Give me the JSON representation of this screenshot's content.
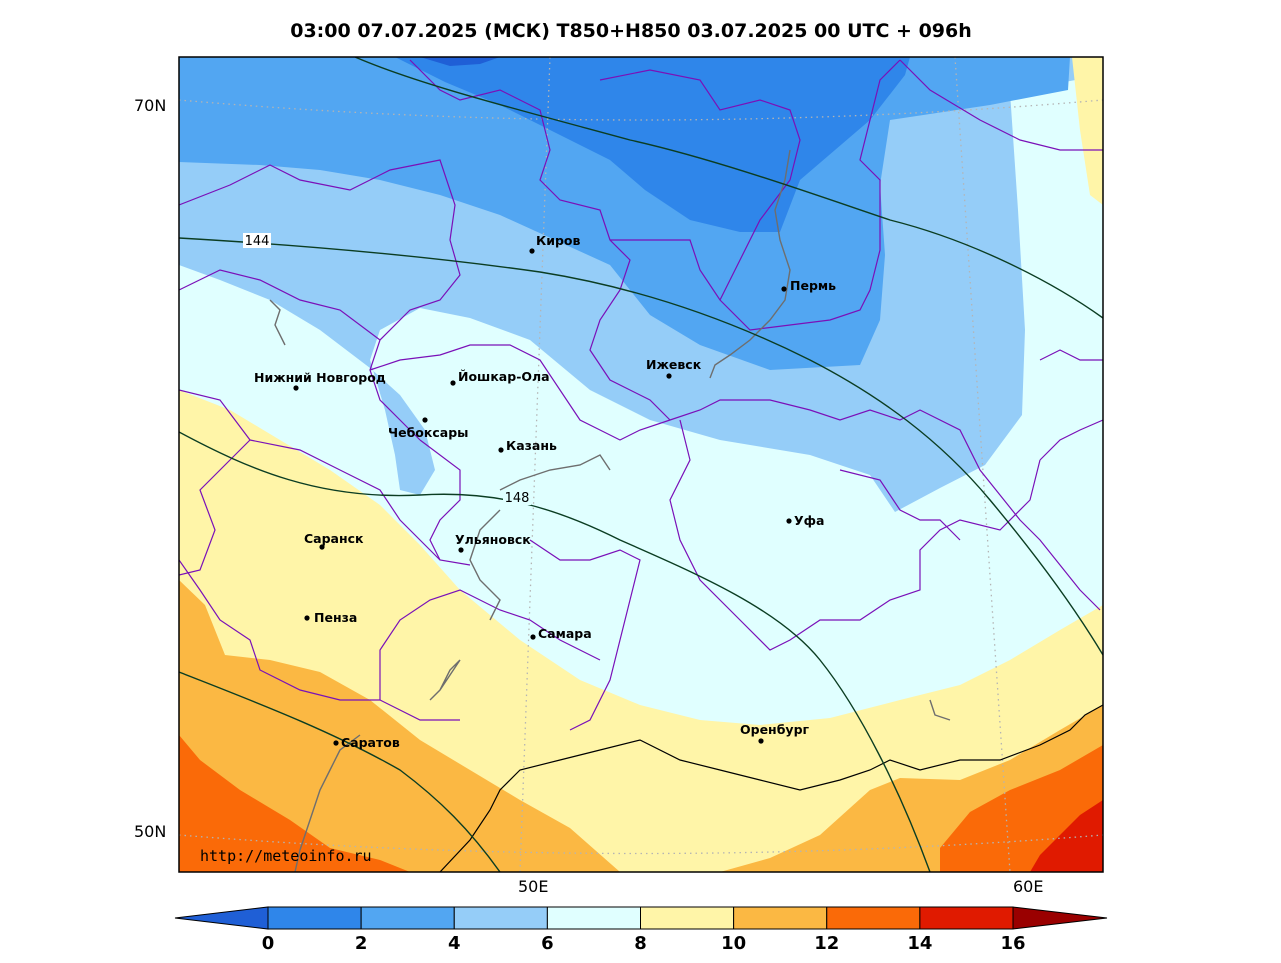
{
  "title": "03:00 07.07.2025 (МСК) T850+H850 03.07.2025 00 UTC + 096h",
  "watermark": "http://meteoinfo.ru",
  "lat_labels": [
    "70N",
    "50N"
  ],
  "lon_labels": [
    "50E",
    "60E"
  ],
  "contour_labels": [
    "144",
    "148"
  ],
  "colorbar": {
    "ticks": [
      "0",
      "2",
      "4",
      "6",
      "8",
      "10",
      "12",
      "14",
      "16"
    ],
    "colors": [
      "#1f5fd6",
      "#2f86ea",
      "#52a6f2",
      "#95cdf8",
      "#e0ffff",
      "#fff5a8",
      "#fbb843",
      "#fa6a08",
      "#e01a00",
      "#9a0000"
    ]
  },
  "cities": [
    {
      "name": "Киров"
    },
    {
      "name": "Пермь"
    },
    {
      "name": "Ижевск"
    },
    {
      "name": "Нижний Новгород"
    },
    {
      "name": "Йошкар-Ола"
    },
    {
      "name": "Чебоксары"
    },
    {
      "name": "Казань"
    },
    {
      "name": "Уфа"
    },
    {
      "name": "Саранск"
    },
    {
      "name": "Ульяновск"
    },
    {
      "name": "Пенза"
    },
    {
      "name": "Самара"
    },
    {
      "name": "Оренбург"
    },
    {
      "name": "Саратов"
    }
  ]
}
